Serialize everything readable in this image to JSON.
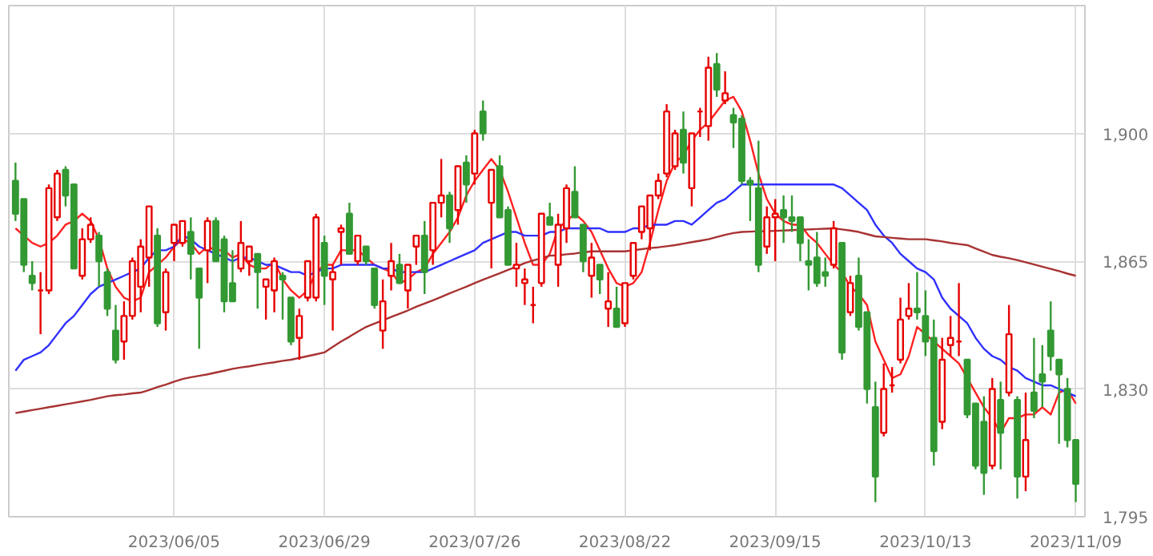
{
  "chart_data": {
    "type": "candlestick",
    "categories": [
      null,
      null,
      null,
      null,
      null,
      null,
      null,
      null,
      null,
      null,
      null,
      null,
      null,
      null,
      null,
      null,
      null,
      null,
      null,
      "2023/06/05",
      null,
      null,
      null,
      null,
      null,
      null,
      null,
      null,
      null,
      null,
      null,
      null,
      null,
      null,
      null,
      null,
      null,
      "2023/06/29",
      null,
      null,
      null,
      null,
      null,
      null,
      null,
      null,
      null,
      null,
      null,
      null,
      null,
      null,
      null,
      null,
      null,
      "2023/07/26",
      null,
      null,
      null,
      null,
      null,
      null,
      null,
      null,
      null,
      null,
      null,
      null,
      null,
      null,
      null,
      null,
      null,
      "2023/08/22",
      null,
      null,
      null,
      null,
      null,
      null,
      null,
      null,
      null,
      null,
      null,
      null,
      null,
      null,
      null,
      null,
      null,
      "2023/09/15",
      null,
      null,
      null,
      null,
      null,
      null,
      null,
      null,
      null,
      null,
      null,
      null,
      null,
      null,
      null,
      null,
      null,
      "2023/10/13",
      null,
      null,
      null,
      null,
      null,
      null,
      null,
      null,
      null,
      null,
      null,
      null,
      null,
      null,
      null,
      null,
      null,
      "2023/11/09"
    ],
    "ohlc": [
      [
        1887,
        1892,
        1876,
        1878
      ],
      [
        1882,
        1882,
        1862,
        1864
      ],
      [
        1861,
        1865,
        1857,
        1859
      ],
      [
        1857,
        1862,
        1845,
        1857
      ],
      [
        1857,
        1886,
        1856,
        1885
      ],
      [
        1877,
        1890,
        1876,
        1889
      ],
      [
        1890,
        1891,
        1880,
        1883
      ],
      [
        1886,
        1886,
        1863,
        1863
      ],
      [
        1861,
        1874,
        1860,
        1871
      ],
      [
        1871,
        1877,
        1870,
        1875
      ],
      [
        1872,
        1873,
        1858,
        1865
      ],
      [
        1862,
        1863,
        1850,
        1852
      ],
      [
        1846,
        1853,
        1837,
        1838
      ],
      [
        1843,
        1854,
        1838,
        1850
      ],
      [
        1850,
        1866,
        1849,
        1865
      ],
      [
        1858,
        1871,
        1851,
        1869
      ],
      [
        1866,
        1880,
        1858,
        1880
      ],
      [
        1872,
        1874,
        1847,
        1848
      ],
      [
        1851,
        1863,
        1846,
        1862
      ],
      [
        1870,
        1875,
        1865,
        1875
      ],
      [
        1870,
        1876,
        1869,
        1876
      ],
      [
        1873,
        1877,
        1860,
        1867
      ],
      [
        1863,
        1863,
        1841,
        1855
      ],
      [
        1868,
        1877,
        1859,
        1876
      ],
      [
        1876,
        1877,
        1865,
        1865
      ],
      [
        1871,
        1872,
        1851,
        1854
      ],
      [
        1859,
        1868,
        1854,
        1854
      ],
      [
        1863,
        1876,
        1862,
        1870
      ],
      [
        1865,
        1869,
        1861,
        1869
      ],
      [
        1867,
        1867,
        1852,
        1862
      ],
      [
        1858,
        1860,
        1849,
        1860
      ],
      [
        1857,
        1866,
        1851,
        1865
      ],
      [
        1861,
        1862,
        1849,
        1860
      ],
      [
        1855,
        1855,
        1842,
        1843
      ],
      [
        1844,
        1852,
        1838,
        1850
      ],
      [
        1855,
        1865,
        1854,
        1865
      ],
      [
        1855,
        1878,
        1854,
        1877
      ],
      [
        1870,
        1872,
        1853,
        1861
      ],
      [
        1860,
        1864,
        1846,
        1862
      ],
      [
        1873,
        1875,
        1864,
        1874
      ],
      [
        1878,
        1881,
        1867,
        1867
      ],
      [
        1865,
        1872,
        1864,
        1872
      ],
      [
        1869,
        1869,
        1864,
        1865
      ],
      [
        1863,
        1863,
        1852,
        1853
      ],
      [
        1846,
        1860,
        1841,
        1854
      ],
      [
        1861,
        1870,
        1857,
        1865
      ],
      [
        1864,
        1867,
        1859,
        1859
      ],
      [
        1857,
        1864,
        1852,
        1864
      ],
      [
        1869,
        1872,
        1864,
        1872
      ],
      [
        1872,
        1876,
        1856,
        1862
      ],
      [
        1868,
        1881,
        1864,
        1881
      ],
      [
        1881,
        1893,
        1877,
        1883
      ],
      [
        1883,
        1884,
        1870,
        1874
      ],
      [
        1879,
        1891,
        1875,
        1891
      ],
      [
        1892,
        1894,
        1881,
        1886
      ],
      [
        1889,
        1901,
        1886,
        1900
      ],
      [
        1906,
        1909,
        1898,
        1900
      ],
      [
        1881,
        1890,
        1863,
        1890
      ],
      [
        1891,
        1894,
        1877,
        1877
      ],
      [
        1879,
        1880,
        1864,
        1864
      ],
      [
        1863,
        1870,
        1858,
        1864
      ],
      [
        1859,
        1863,
        1853,
        1860
      ],
      [
        1853,
        1858,
        1848,
        1853
      ],
      [
        1859,
        1878,
        1858,
        1878
      ],
      [
        1877,
        1881,
        1875,
        1875
      ],
      [
        1864,
        1878,
        1858,
        1875
      ],
      [
        1874,
        1886,
        1870,
        1885
      ],
      [
        1884,
        1891,
        1877,
        1877
      ],
      [
        1875,
        1875,
        1862,
        1865
      ],
      [
        1861,
        1870,
        1855,
        1866
      ],
      [
        1864,
        1864,
        1856,
        1860
      ],
      [
        1852,
        1862,
        1847,
        1854
      ],
      [
        1852,
        1858,
        1847,
        1847
      ],
      [
        1848,
        1859,
        1847,
        1859
      ],
      [
        1861,
        1870,
        1860,
        1870
      ],
      [
        1873,
        1880,
        1871,
        1880
      ],
      [
        1874,
        1883,
        1868,
        1883
      ],
      [
        1883,
        1889,
        1882,
        1887
      ],
      [
        1889,
        1908,
        1888,
        1906
      ],
      [
        1891,
        1901,
        1890,
        1900
      ],
      [
        1901,
        1906,
        1889,
        1892
      ],
      [
        1885,
        1900,
        1880,
        1900
      ],
      [
        1906,
        1907,
        1899,
        1906
      ],
      [
        1902,
        1921,
        1898,
        1918
      ],
      [
        1919,
        1922,
        1910,
        1912
      ],
      [
        1909,
        1917,
        1908,
        1911
      ],
      [
        1905,
        1907,
        1896,
        1903
      ],
      [
        1904,
        1905,
        1886,
        1887
      ],
      [
        1887,
        1888,
        1876,
        1886
      ],
      [
        1885,
        1898,
        1862,
        1864
      ],
      [
        1869,
        1880,
        1867,
        1877
      ],
      [
        1877,
        1882,
        1865,
        1878
      ],
      [
        1879,
        1883,
        1870,
        1877
      ],
      [
        1877,
        1883,
        1873,
        1876
      ],
      [
        1877,
        1877,
        1865,
        1870
      ],
      [
        1865,
        1871,
        1857,
        1864
      ],
      [
        1866,
        1873,
        1858,
        1859
      ],
      [
        1862,
        1866,
        1858,
        1861
      ],
      [
        1864,
        1876,
        1863,
        1874
      ],
      [
        1870,
        1870,
        1838,
        1840
      ],
      [
        1851,
        1861,
        1850,
        1859
      ],
      [
        1861,
        1866,
        1846,
        1847
      ],
      [
        1851,
        1851,
        1826,
        1830
      ],
      [
        1825,
        1832,
        1799,
        1806
      ],
      [
        1818,
        1837,
        1817,
        1830
      ],
      [
        1831,
        1836,
        1829,
        1831
      ],
      [
        1838,
        1855,
        1837,
        1849
      ],
      [
        1850,
        1859,
        1849,
        1852
      ],
      [
        1852,
        1862,
        1849,
        1851
      ],
      [
        1850,
        1857,
        1839,
        1843
      ],
      [
        1844,
        1849,
        1809,
        1813
      ],
      [
        1821,
        1844,
        1819,
        1838
      ],
      [
        1842,
        1850,
        1839,
        1844
      ],
      [
        1843,
        1859,
        1839,
        1843
      ],
      [
        1838,
        1838,
        1822,
        1823
      ],
      [
        1826,
        1826,
        1808,
        1809
      ],
      [
        1821,
        1828,
        1801,
        1807
      ],
      [
        1809,
        1833,
        1808,
        1830
      ],
      [
        1827,
        1832,
        1808,
        1818
      ],
      [
        1829,
        1853,
        1828,
        1845
      ],
      [
        1827,
        1828,
        1800,
        1806
      ],
      [
        1806,
        1829,
        1802,
        1816
      ],
      [
        1829,
        1844,
        1822,
        1824
      ],
      [
        1834,
        1842,
        1825,
        1832
      ],
      [
        1846,
        1854,
        1835,
        1839
      ],
      [
        1838,
        1838,
        1815,
        1834
      ],
      [
        1830,
        1833,
        1814,
        1816
      ],
      [
        1816,
        1816,
        1799,
        1804
      ]
    ],
    "colors": [
      "#339933",
      "#339933",
      "#339933",
      "#e60000",
      "#e60000",
      "#e60000",
      "#339933",
      "#339933",
      "#e60000",
      "#e60000",
      "#339933",
      "#339933",
      "#339933",
      "#e60000",
      "#e60000",
      "#e60000",
      "#e60000",
      "#339933",
      "#e60000",
      "#e60000",
      "#e60000",
      "#339933",
      "#339933",
      "#e60000",
      "#339933",
      "#339933",
      "#339933",
      "#e60000",
      "#e60000",
      "#339933",
      "#e60000",
      "#e60000",
      "#339933",
      "#339933",
      "#e60000",
      "#e60000",
      "#e60000",
      "#339933",
      "#e60000",
      "#e60000",
      "#339933",
      "#e60000",
      "#339933",
      "#339933",
      "#e60000",
      "#e60000",
      "#339933",
      "#e60000",
      "#e60000",
      "#339933",
      "#e60000",
      "#e60000",
      "#339933",
      "#e60000",
      "#339933",
      "#e60000",
      "#339933",
      "#e60000",
      "#339933",
      "#339933",
      "#e60000",
      "#e60000",
      "#e60000",
      "#e60000",
      "#339933",
      "#e60000",
      "#e60000",
      "#339933",
      "#339933",
      "#e60000",
      "#339933",
      "#e60000",
      "#339933",
      "#e60000",
      "#e60000",
      "#e60000",
      "#e60000",
      "#e60000",
      "#e60000",
      "#e60000",
      "#339933",
      "#e60000",
      "#e60000",
      "#e60000",
      "#339933",
      "#e60000",
      "#339933",
      "#339933",
      "#339933",
      "#339933",
      "#e60000",
      "#e60000",
      "#339933",
      "#339933",
      "#339933",
      "#339933",
      "#339933",
      "#339933",
      "#e60000",
      "#339933",
      "#e60000",
      "#339933",
      "#339933",
      "#339933",
      "#e60000",
      "#e60000",
      "#e60000",
      "#e60000",
      "#339933",
      "#339933",
      "#339933",
      "#e60000",
      "#e60000",
      "#e60000",
      "#339933",
      "#339933",
      "#339933",
      "#e60000",
      "#339933",
      "#e60000",
      "#339933",
      "#e60000",
      "#339933",
      "#339933",
      "#339933",
      "#339933",
      "#339933",
      "#339933"
    ],
    "series": [
      {
        "type": "line",
        "color": "#ff2020",
        "values": [
          1874,
          1872,
          1870,
          1869,
          1870,
          1872,
          1875,
          1876,
          1878,
          1876,
          1871,
          1863,
          1858,
          1855,
          1854,
          1855,
          1862,
          1864,
          1866,
          1869,
          1871,
          1870,
          1867,
          1869,
          1868,
          1868,
          1866,
          1867,
          1864,
          1863,
          1863,
          1865,
          1860,
          1857,
          1855,
          1857,
          1862,
          1864,
          1864,
          1868,
          1868,
          1868,
          1866,
          1864,
          1863,
          1862,
          1859,
          1860,
          1862,
          1863,
          1867,
          1870,
          1873,
          1877,
          1883,
          1887,
          1890,
          1893,
          1890,
          1884,
          1877,
          1870,
          1864,
          1864,
          1867,
          1874,
          1876,
          1878,
          1876,
          1873,
          1868,
          1863,
          1859,
          1858,
          1859,
          1862,
          1870,
          1879,
          1887,
          1892,
          1894,
          1898,
          1901,
          1903,
          1906,
          1909,
          1910,
          1906,
          1898,
          1889,
          1882,
          1878,
          1876,
          1875,
          1875,
          1872,
          1870,
          1867,
          1864,
          1862,
          1858,
          1856,
          1853,
          1843,
          1838,
          1833,
          1834,
          1839,
          1847,
          1845,
          1843,
          1841,
          1839,
          1837,
          1833,
          1829,
          1825,
          1822,
          1818,
          1822,
          1822,
          1823,
          1823,
          1825,
          1823,
          1829,
          1830,
          1826
        ]
      },
      {
        "type": "line",
        "color": "#3030ff",
        "values": [
          1835,
          1838,
          1839,
          1840,
          1842,
          1845,
          1848,
          1850,
          1853,
          1856,
          1858,
          1859,
          1860,
          1861,
          1862,
          1863,
          1866,
          1868,
          1868,
          1869,
          1872,
          1871,
          1869,
          1868,
          1867,
          1866,
          1865,
          1866,
          1866,
          1865,
          1864,
          1864,
          1863,
          1862,
          1862,
          1861,
          1862,
          1863,
          1863,
          1864,
          1864,
          1864,
          1864,
          1864,
          1863,
          1863,
          1862,
          1862,
          1862,
          1862,
          1863,
          1864,
          1865,
          1866,
          1867,
          1868,
          1870,
          1871,
          1872,
          1873,
          1873,
          1872,
          1872,
          1872,
          1873,
          1873,
          1874,
          1874,
          1874,
          1874,
          1874,
          1873,
          1873,
          1873,
          1874,
          1874,
          1875,
          1875,
          1875,
          1876,
          1876,
          1875,
          1877,
          1879,
          1881,
          1882,
          1884,
          1886,
          1886,
          1886,
          1886,
          1886,
          1886,
          1886,
          1886,
          1886,
          1886,
          1886,
          1886,
          1885,
          1883,
          1881,
          1879,
          1875,
          1872,
          1870,
          1867,
          1865,
          1863,
          1862,
          1860,
          1855,
          1852,
          1850,
          1848,
          1844,
          1841,
          1839,
          1838,
          1836,
          1835,
          1833,
          1832,
          1831,
          1831,
          1830,
          1829,
          1828
        ]
      },
      {
        "type": "line",
        "color": "#a83232",
        "values": [
          1823.4,
          1823.8,
          1824.2,
          1824.6,
          1825,
          1825.4,
          1825.8,
          1826.2,
          1826.6,
          1827,
          1827.5,
          1828,
          1828.3,
          1828.5,
          1828.8,
          1829,
          1829.7,
          1830.5,
          1831.2,
          1832,
          1832.7,
          1833.2,
          1833.6,
          1834,
          1834.5,
          1835,
          1835.5,
          1835.9,
          1836.2,
          1836.6,
          1837,
          1837.3,
          1837.7,
          1838,
          1838.5,
          1839,
          1839.5,
          1840,
          1841.5,
          1843,
          1844.3,
          1845.7,
          1847,
          1847.9,
          1848.8,
          1849.7,
          1850.6,
          1851.5,
          1852.5,
          1853.4,
          1854.3,
          1855.2,
          1856.2,
          1857.1,
          1858,
          1859,
          1859.9,
          1860.8,
          1861.7,
          1862.6,
          1863.5,
          1864.5,
          1865.2,
          1865.8,
          1866.5,
          1866.6,
          1866.9,
          1867.1,
          1867.4,
          1867.7,
          1867.7,
          1867.7,
          1867.7,
          1867.7,
          1868,
          1868.3,
          1868.6,
          1868.8,
          1869.1,
          1869.4,
          1869.8,
          1870.2,
          1870.6,
          1871,
          1871.6,
          1872.2,
          1872.7,
          1873,
          1873.1,
          1873.2,
          1873.2,
          1873.3,
          1873.4,
          1873.5,
          1873.6,
          1873.7,
          1873.8,
          1873.9,
          1874,
          1873.7,
          1873.4,
          1873,
          1872.4,
          1871.8,
          1871.6,
          1871.4,
          1871.2,
          1871,
          1871,
          1871,
          1870.7,
          1870.4,
          1870,
          1869.7,
          1869.4,
          1868.5,
          1867.6,
          1866.7,
          1866.2,
          1865.8,
          1865.3,
          1864.7,
          1864.1,
          1863.5,
          1862.9,
          1862.3,
          1861.6,
          1861
        ]
      }
    ],
    "ylim": [
      1795,
      1935
    ],
    "yticks": [
      {
        "value": 1795,
        "label": "1,795"
      },
      {
        "value": 1830,
        "label": "1,830"
      },
      {
        "value": 1865,
        "label": "1,865"
      },
      {
        "value": 1900,
        "label": "1,900"
      }
    ],
    "grid": true
  }
}
